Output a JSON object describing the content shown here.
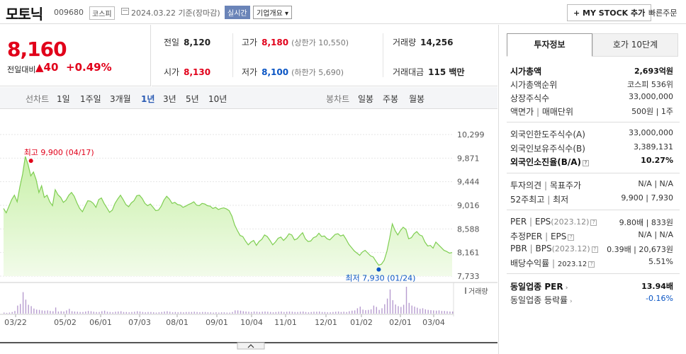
{
  "header": {
    "stock_name": "모토닉",
    "stock_code": "009680",
    "market": "코스피",
    "date_text": "2024.03.22  기준(장마감)",
    "realtime_label": "실시간",
    "company_label": "기업개요 ▾",
    "mystock_label": "+ MY STOCK 추가",
    "quick_order_label": "빠른주문"
  },
  "price": {
    "current": "8,160",
    "change_label": "전일대비",
    "change_amount": "▲40",
    "change_pct": "+0.49%"
  },
  "quotes": {
    "prev_close_label": "전일",
    "prev_close": "8,120",
    "high_label": "고가",
    "high": "8,180",
    "upper_limit": "(상한가 10,550)",
    "volume_label": "거래량",
    "volume": "14,256",
    "open_label": "시가",
    "open": "8,130",
    "low_label": "저가",
    "low": "8,100",
    "lower_limit": "(하한가 5,690)",
    "amount_label": "거래대금",
    "amount": "115 백만"
  },
  "period_bar": {
    "line_chart_label": "선차트",
    "periods": [
      "1일",
      "1주일",
      "3개월",
      "1년",
      "3년",
      "5년",
      "10년"
    ],
    "active_period": "1년",
    "candle_label": "봉차트",
    "candle_periods": [
      "일봉",
      "주봉",
      "월봉"
    ]
  },
  "chart_data": {
    "type": "area",
    "y_ticks": [
      "10,299",
      "9,871",
      "9,444",
      "9,016",
      "8,588",
      "8,161",
      "7,733"
    ],
    "x_ticks": [
      "03/22",
      "05/02",
      "06/01",
      "07/03",
      "08/01",
      "09/01",
      "10/04",
      "11/01",
      "12/01",
      "01/02",
      "02/01",
      "03/04"
    ],
    "ylim": [
      7733,
      10299
    ],
    "high_annotation": "최고 9,900 (04/17)",
    "low_annotation": "최저 7,930 (01/24)",
    "volume_label": "거래량",
    "series": [
      {
        "values": [
          8960,
          8880,
          9000,
          9120,
          9200,
          9080,
          9350,
          9580,
          9900,
          9760,
          9550,
          9620,
          9480,
          9250,
          9370,
          9160,
          9200,
          9080,
          9010,
          9300,
          9210,
          9160,
          9070,
          9110,
          9200,
          9250,
          9180,
          9060,
          8960,
          8900,
          9000,
          9100,
          9090,
          9050,
          8980,
          9120,
          9150,
          9050,
          8970,
          8890,
          8930,
          9050,
          9130,
          9200,
          9120,
          9030,
          8990,
          9060,
          9100,
          9190,
          9200,
          9140,
          9050,
          9010,
          9040,
          8980,
          8920,
          8930,
          9000,
          9110,
          9180,
          9130,
          9050,
          9070,
          9030,
          9020,
          8980,
          9000,
          9030,
          9050,
          9080,
          9020,
          9010,
          9050,
          9040,
          9010,
          9000,
          8960,
          8980,
          8940,
          8960,
          8970,
          8950,
          8920,
          8820,
          8660,
          8560,
          8470,
          8450,
          8370,
          8300,
          8350,
          8380,
          8290,
          8360,
          8400,
          8480,
          8450,
          8380,
          8300,
          8350,
          8420,
          8440,
          8380,
          8430,
          8500,
          8480,
          8390,
          8410,
          8470,
          8520,
          8410,
          8360,
          8370,
          8430,
          8450,
          8510,
          8450,
          8460,
          8410,
          8390,
          8440,
          8490,
          8500,
          8460,
          8480,
          8400,
          8310,
          8250,
          8190,
          8150,
          8110,
          8170,
          8200,
          8150,
          8100,
          8080,
          8000,
          7930,
          7950,
          8020,
          8180,
          8420,
          8680,
          8560,
          8480,
          8560,
          8620,
          8580,
          8410,
          8430,
          8500,
          8540,
          8480,
          8460,
          8350,
          8280,
          8290,
          8240,
          8350,
          8300,
          8250,
          8200,
          8180,
          8150,
          8160
        ]
      }
    ],
    "volume": [
      40,
      30,
      40,
      60,
      100,
      300,
      360,
      800,
      520,
      330,
      280,
      190,
      150,
      140,
      120,
      110,
      120,
      100,
      90,
      230,
      80,
      90,
      80,
      120,
      180,
      90,
      80,
      70,
      60,
      60,
      80,
      100,
      90,
      70,
      60,
      60,
      90,
      110,
      70,
      60,
      50,
      70,
      80,
      90,
      60,
      60,
      50,
      60,
      70,
      90,
      80,
      60,
      50,
      60,
      60,
      50,
      40,
      50,
      60,
      80,
      90,
      70,
      50,
      60,
      50,
      60,
      50,
      60,
      60,
      60,
      70,
      60,
      50,
      60,
      60,
      50,
      50,
      40,
      50,
      40,
      50,
      50,
      40,
      40,
      60,
      120,
      120,
      110,
      90,
      80,
      70,
      60,
      80,
      70,
      60,
      70,
      80,
      70,
      60,
      50,
      60,
      70,
      80,
      60,
      70,
      80,
      70,
      60,
      60,
      70,
      80,
      60,
      50,
      60,
      70,
      70,
      80,
      60,
      60,
      50,
      50,
      60,
      70,
      80,
      60,
      70,
      60,
      90,
      110,
      120,
      200,
      260,
      150,
      130,
      140,
      160,
      300,
      250,
      140,
      200,
      350,
      560,
      900,
      500,
      340,
      280,
      250,
      330,
      1000,
      400,
      300,
      260,
      220,
      180,
      200,
      160,
      140,
      130,
      120,
      110,
      120,
      100,
      100,
      90,
      80,
      80
    ]
  },
  "side_panel": {
    "tab_active": "투자정보",
    "tab_inactive": "호가 10단계",
    "market_cap_label": "시가총액",
    "market_cap": "2,693억원",
    "cap_rank_label": "시가총액순위",
    "cap_rank": "코스피 536위",
    "shares_label": "상장주식수",
    "shares": "33,000,000",
    "par_label": "액면가",
    "par_sep": "|",
    "unit_label": "매매단위",
    "par_unit": "500원 | 1주",
    "foreign_limit_label": "외국인한도주식수(A)",
    "foreign_limit": "33,000,000",
    "foreign_hold_label": "외국인보유주식수(B)",
    "foreign_hold": "3,389,131",
    "foreign_ratio_label": "외국인소진율(B/A)",
    "foreign_ratio": "10.27%",
    "opinion_label": "투자의견",
    "target_label": "목표주가",
    "opinion_val": "N/A | N/A",
    "w52_label": "52주최고",
    "w52_low_label": "최저",
    "w52_val": "9,900 | 7,930",
    "per_label": "PER",
    "eps_label": "EPS",
    "eps_year": "(2023.12)",
    "per_eps_val": "9.80배 | 833원",
    "est_per_label": "추정PER",
    "est_eps_label": "EPS",
    "est_val": "N/A | N/A",
    "pbr_label": "PBR",
    "bps_label": "BPS",
    "bps_year": "(2023.12)",
    "pbr_bps_val": "0.39배 | 20,673원",
    "dividend_label": "배당수익률",
    "dividend_year": "2023.12",
    "dividend_val": "5.51%",
    "sector_per_label": "동일업종 PER",
    "sector_per": "13.94배",
    "sector_rate_label": "동일업종 등락률",
    "sector_rate": "-0.16%"
  }
}
